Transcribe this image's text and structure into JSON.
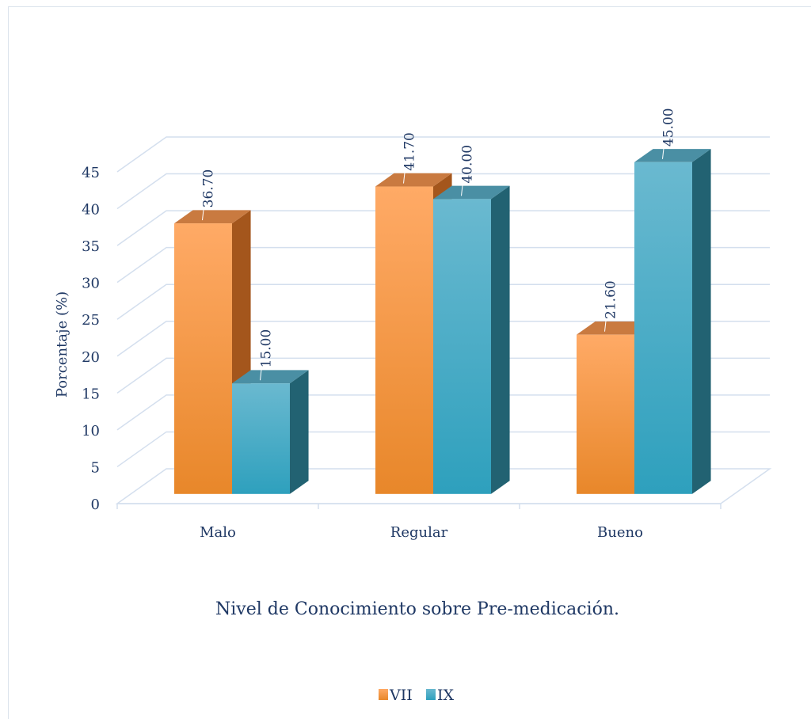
{
  "chart_data": {
    "type": "bar",
    "categories": [
      "Malo",
      "Regular",
      "Bueno"
    ],
    "series": [
      {
        "name": "VII",
        "values": [
          36.7,
          41.7,
          21.6
        ],
        "labels": [
          "36.70",
          "41.70",
          "21.60"
        ]
      },
      {
        "name": "IX",
        "values": [
          15.0,
          40.0,
          45.0
        ],
        "labels": [
          "15.00",
          "40.00",
          "45.00"
        ]
      }
    ],
    "yticks": [
      "0",
      "5",
      "10",
      "15",
      "20",
      "25",
      "30",
      "35",
      "40",
      "45"
    ],
    "ylim": [
      0,
      45
    ],
    "ylabel": "Porcentaje (%)",
    "xlabel": "Nivel de Conocimiento sobre Pre-medicación.",
    "title": "",
    "grid": true,
    "legend_position": "bottom",
    "style": "3d-clustered-column",
    "colors": {
      "VII": {
        "front_top": "#ffaa66",
        "front_bottom": "#e8872a",
        "side": "#a4561c",
        "top": "#c97a40"
      },
      "IX": {
        "front_top": "#6ab9d0",
        "front_bottom": "#2ea0bd",
        "side": "#226272",
        "top": "#4a8fa4"
      },
      "grid": "#d4dfee",
      "text": "#1f3864"
    }
  }
}
